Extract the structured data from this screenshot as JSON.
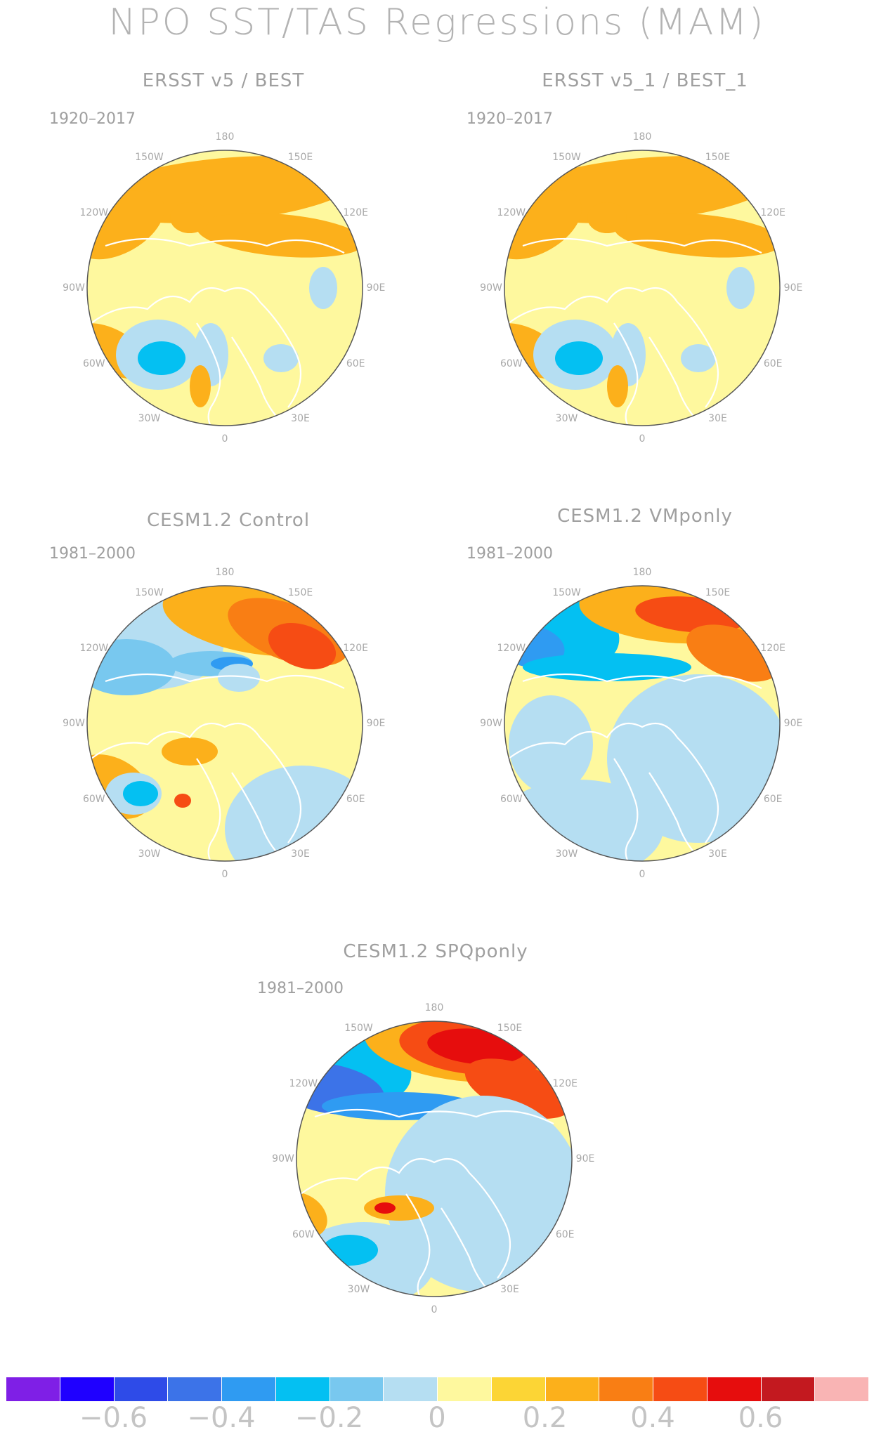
{
  "figure": {
    "title": "NPO SST/TAS Regressions (MAM)"
  },
  "lon_labels": [
    "180",
    "150E",
    "120E",
    "90E",
    "60E",
    "30E",
    "0",
    "30W",
    "60W",
    "90W",
    "120W",
    "150W"
  ],
  "panels": [
    {
      "title": "ERSST v5 / BEST",
      "period": "1920–2017",
      "anomalies": [
        {
          "label": "warm band north Pacific",
          "level": 0.2
        },
        {
          "label": "warm west Pacific coast",
          "level": 0.2
        },
        {
          "label": "cool North Atlantic subpolar",
          "level": -0.25
        },
        {
          "label": "cool Greenland sea",
          "level": -0.1
        },
        {
          "label": "warm North America east",
          "level": 0.2
        }
      ]
    },
    {
      "title": "ERSST v5_1 / BEST_1",
      "period": "1920–2017",
      "anomalies": [
        {
          "label": "warm band north Pacific",
          "level": 0.2
        },
        {
          "label": "warm west Pacific coast",
          "level": 0.2
        },
        {
          "label": "cool North Atlantic subpolar",
          "level": -0.25
        },
        {
          "label": "cool Greenland sea",
          "level": -0.1
        },
        {
          "label": "warm North America east",
          "level": 0.2
        }
      ]
    },
    {
      "title": "CESM1.2 Control",
      "period": "1981–2000",
      "anomalies": [
        {
          "label": "warm north Pacific",
          "level": 0.35
        },
        {
          "label": "cool Gulf of Alaska",
          "level": -0.2
        },
        {
          "label": "cool North Atlantic",
          "level": -0.25
        },
        {
          "label": "cool Eurasia",
          "level": -0.1
        }
      ]
    },
    {
      "title": "CESM1.2 VMponly",
      "period": "1981–2000",
      "anomalies": [
        {
          "label": "warm north Pacific",
          "level": 0.45
        },
        {
          "label": "cool North America",
          "level": -0.35
        },
        {
          "label": "cool Eurasia",
          "level": -0.1
        }
      ]
    },
    {
      "title": "CESM1.2 SPQponly",
      "period": "1981–2000",
      "anomalies": [
        {
          "label": "warm north Pacific",
          "level": 0.55
        },
        {
          "label": "cool North America",
          "level": -0.45
        },
        {
          "label": "cool North Atlantic",
          "level": -0.3
        },
        {
          "label": "cool Eurasia",
          "level": -0.1
        }
      ]
    }
  ],
  "colorbar": {
    "colors": [
      "#7f1fe6",
      "#1f00ff",
      "#2e4be8",
      "#3c73e8",
      "#2f9bf2",
      "#04c0f2",
      "#78c8ef",
      "#b5def2",
      "#fef89e",
      "#fcd535",
      "#fcb01b",
      "#f97e14",
      "#f64c14",
      "#e60d0d",
      "#c3191f",
      "#f9b4b4"
    ],
    "tick_labels": [
      "−0.6",
      "−0.4",
      "−0.2",
      "0",
      "0.2",
      "0.4",
      "0.6"
    ]
  }
}
